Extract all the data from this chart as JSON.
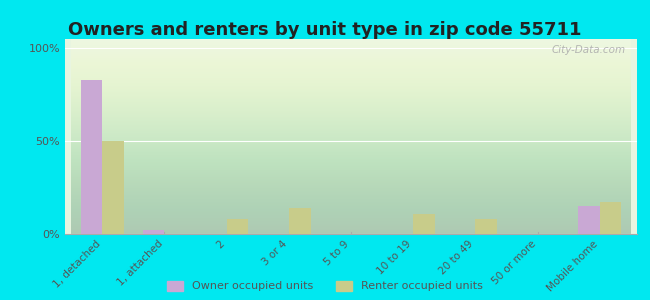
{
  "title": "Owners and renters by unit type in zip code 55711",
  "categories": [
    "1, detached",
    "1, attached",
    "2",
    "3 or 4",
    "5 to 9",
    "10 to 19",
    "20 to 49",
    "50 or more",
    "Mobile home"
  ],
  "owner_values": [
    83,
    2,
    0,
    0,
    0,
    0,
    0,
    0,
    15
  ],
  "renter_values": [
    50,
    0,
    8,
    14,
    0,
    11,
    8,
    0,
    17
  ],
  "owner_color": "#c9a8d4",
  "renter_color": "#c8cc8a",
  "bg_color": "#00e8f0",
  "yticks": [
    0,
    50,
    100
  ],
  "ylim": [
    0,
    105
  ],
  "bar_width": 0.35,
  "title_fontsize": 13,
  "legend_labels": [
    "Owner occupied units",
    "Renter occupied units"
  ],
  "watermark": "City-Data.com",
  "axis_color": "#888888",
  "tick_color": "#555555",
  "title_color": "#222222"
}
